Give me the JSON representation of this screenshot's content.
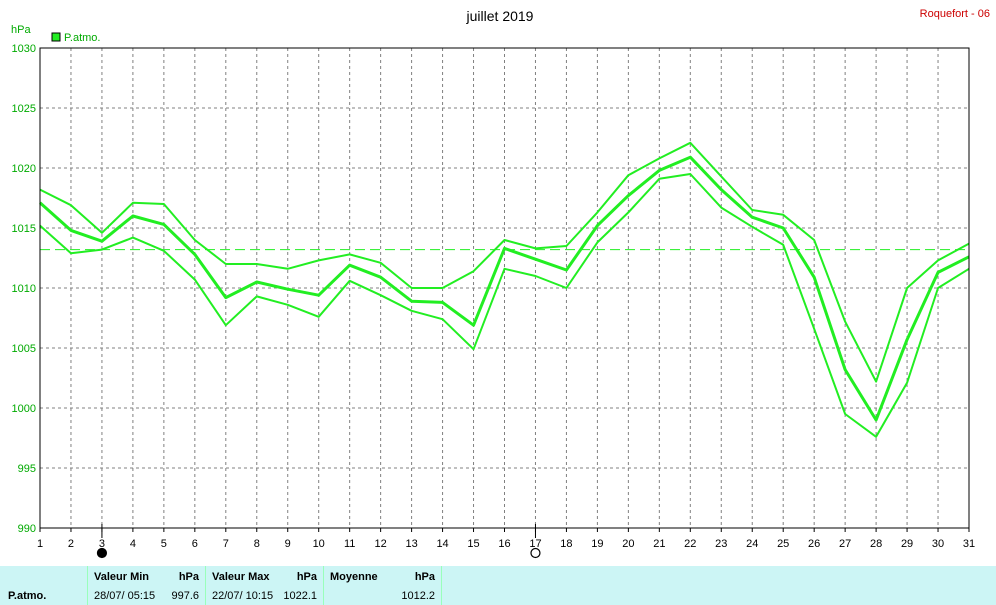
{
  "title": "juillet 2019",
  "station": "Roquefort - 06",
  "unit": "hPa",
  "legend": "P.atmo.",
  "colors": {
    "series": "#22ee22",
    "grid": "#808080",
    "station": "#cc0000",
    "axis": "#000000",
    "accent": "#00aa00",
    "panel": "#ccf5f5"
  },
  "chart_data": {
    "type": "line",
    "title": "juillet 2019",
    "ylabel": "hPa",
    "xlabel": "",
    "ylim": [
      990,
      1030
    ],
    "xlim": [
      1,
      31
    ],
    "x": [
      1,
      2,
      3,
      4,
      5,
      6,
      7,
      8,
      9,
      10,
      11,
      12,
      13,
      14,
      15,
      16,
      17,
      18,
      19,
      20,
      21,
      22,
      23,
      24,
      25,
      26,
      27,
      28,
      29,
      30,
      31
    ],
    "yticks": [
      990,
      995,
      1000,
      1005,
      1010,
      1015,
      1020,
      1025,
      1030
    ],
    "xticks": [
      1,
      2,
      3,
      4,
      5,
      6,
      7,
      8,
      9,
      10,
      11,
      12,
      13,
      14,
      15,
      16,
      17,
      18,
      19,
      20,
      21,
      22,
      23,
      24,
      25,
      26,
      27,
      28,
      29,
      30,
      31
    ],
    "grid": true,
    "legend_position": "top-left",
    "series": [
      {
        "name": "P.atmo.",
        "role": "max",
        "values": [
          1018.2,
          1016.9,
          1014.6,
          1017.1,
          1017.0,
          1014.0,
          1012.0,
          1012.0,
          1011.6,
          1012.3,
          1012.8,
          1012.1,
          1010.0,
          1010.0,
          1011.4,
          1014.0,
          1013.3,
          1013.5,
          1016.3,
          1019.4,
          1020.8,
          1022.1,
          1019.3,
          1016.5,
          1016.1,
          1014.0,
          1007.2,
          1002.2,
          1010.0,
          1012.3,
          1013.7
        ]
      },
      {
        "name": "P.atmo.",
        "role": "mean",
        "values": [
          1017.1,
          1014.8,
          1013.9,
          1016.0,
          1015.3,
          1012.8,
          1009.2,
          1010.5,
          1009.9,
          1009.4,
          1011.9,
          1010.9,
          1008.9,
          1008.8,
          1006.9,
          1013.3,
          1012.4,
          1011.5,
          1015.2,
          1017.7,
          1019.8,
          1020.9,
          1018.2,
          1015.9,
          1015.0,
          1010.9,
          1003.2,
          999.0,
          1005.7,
          1011.3,
          1012.6
        ]
      },
      {
        "name": "P.atmo.",
        "role": "min",
        "values": [
          1015.2,
          1012.9,
          1013.2,
          1014.2,
          1013.1,
          1010.7,
          1006.9,
          1009.3,
          1008.6,
          1007.6,
          1010.6,
          1009.4,
          1008.1,
          1007.4,
          1004.9,
          1011.6,
          1011.0,
          1010.0,
          1013.8,
          1016.3,
          1019.1,
          1019.5,
          1016.7,
          1015.1,
          1013.6,
          1006.6,
          999.5,
          997.6,
          1002.1,
          1010.0,
          1011.6
        ]
      }
    ],
    "reference_line": {
      "value": 1013.2,
      "style": "dashed"
    },
    "moon_phases": [
      {
        "day": 3,
        "symbol": "●"
      },
      {
        "day": 17,
        "symbol": "○"
      }
    ]
  },
  "stats": {
    "row_label": "P.atmo.",
    "min": {
      "label": "Valeur Min",
      "unit": "hPa",
      "date": "28/07/  05:15",
      "value": "997.6"
    },
    "max": {
      "label": "Valeur Max",
      "unit": "hPa",
      "date": "22/07/  10:15",
      "value": "1022.1"
    },
    "mean": {
      "label": "Moyenne",
      "unit": "hPa",
      "value": "1012.2"
    }
  }
}
